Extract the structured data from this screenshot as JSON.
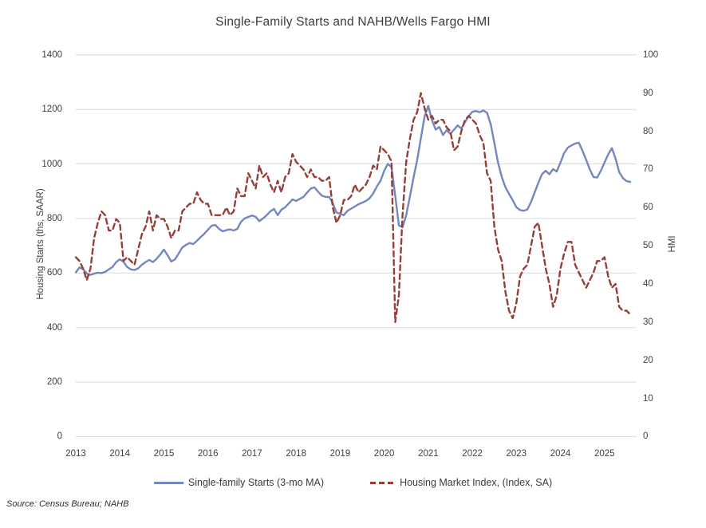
{
  "title": "Single-Family Starts and NAHB/Wells Fargo HMI",
  "source_note": "Source: Census Bureau; NAHB",
  "colors": {
    "starts_line": "#7587BF",
    "hmi_line": "#953E3A",
    "gridline": "#D9D9D9",
    "axis_text": "#404040"
  },
  "chart_data": {
    "type": "line",
    "title": "Single-Family Starts and NAHB/Wells Fargo HMI",
    "frequency": "monthly",
    "x_start": "2013-01",
    "x_end": "2025-08",
    "grid": "horizontal",
    "legend_position": "bottom",
    "x_tick_labels": [
      "2013",
      "2014",
      "2015",
      "2016",
      "2017",
      "2018",
      "2019",
      "2020",
      "2021",
      "2022",
      "2023",
      "2024",
      "2025"
    ],
    "left_axis": {
      "label": "Housing Starts (ths, SAAR)",
      "min": 0,
      "max": 1400,
      "ticks": [
        0,
        200,
        400,
        600,
        800,
        1000,
        1200,
        1400
      ]
    },
    "right_axis": {
      "label": "HMI",
      "min": 0,
      "max": 100,
      "ticks": [
        0,
        10,
        20,
        30,
        40,
        50,
        60,
        70,
        80,
        90,
        100
      ]
    },
    "series": [
      {
        "name": "Single-family Starts (3-mo MA)",
        "axis": "left",
        "style": "solid",
        "color": "#7587BF",
        "values": [
          602,
          620,
          614,
          598,
          593,
          598,
          601,
          600,
          604,
          613,
          622,
          640,
          650,
          641,
          622,
          613,
          611,
          617,
          630,
          640,
          648,
          640,
          652,
          668,
          686,
          665,
          642,
          650,
          671,
          694,
          703,
          710,
          706,
          718,
          732,
          744,
          759,
          773,
          776,
          762,
          753,
          757,
          760,
          756,
          762,
          788,
          800,
          806,
          811,
          806,
          790,
          800,
          812,
          826,
          835,
          812,
          832,
          841,
          855,
          870,
          864,
          872,
          879,
          895,
          910,
          914,
          898,
          884,
          879,
          879,
          856,
          822,
          817,
          812,
          828,
          836,
          844,
          852,
          858,
          864,
          874,
          892,
          917,
          938,
          975,
          1000,
          988,
          884,
          775,
          768,
          812,
          880,
          950,
          1015,
          1095,
          1175,
          1213,
          1160,
          1126,
          1136,
          1106,
          1124,
          1110,
          1126,
          1141,
          1130,
          1153,
          1176,
          1191,
          1194,
          1190,
          1196,
          1188,
          1146,
          1077,
          1005,
          953,
          915,
          890,
          867,
          841,
          831,
          828,
          833,
          861,
          896,
          931,
          963,
          975,
          962,
          981,
          972,
          1005,
          1040,
          1060,
          1068,
          1075,
          1078,
          1048,
          1015,
          980,
          952,
          950,
          975,
          1005,
          1035,
          1058,
          1020,
          970,
          948,
          937,
          934
        ]
      },
      {
        "name": "Housing Market Index, (Index, SA)",
        "axis": "right",
        "style": "dashed",
        "color": "#953E3A",
        "values": [
          47,
          46,
          44,
          41,
          44,
          52,
          56,
          59,
          58,
          54,
          54,
          57,
          56,
          46,
          47,
          46,
          45,
          49,
          53,
          55,
          59,
          54,
          58,
          57,
          57,
          55,
          52,
          54,
          54,
          59,
          60,
          61,
          61,
          64,
          62,
          61,
          61,
          58,
          58,
          58,
          58,
          60,
          58,
          59,
          65,
          63,
          63,
          69,
          67,
          65,
          71,
          68,
          69,
          66,
          64,
          67,
          64,
          68,
          69,
          74,
          72,
          71,
          70,
          68,
          70,
          68,
          68,
          67,
          67,
          68,
          60,
          56,
          58,
          62,
          62,
          63,
          66,
          64,
          65,
          66,
          68,
          71,
          70,
          76,
          75,
          74,
          72,
          30,
          37,
          58,
          72,
          78,
          83,
          85,
          90,
          86,
          83,
          84,
          82,
          83,
          83,
          81,
          80,
          75,
          76,
          80,
          83,
          84,
          83,
          82,
          79,
          77,
          69,
          67,
          55,
          49,
          46,
          38,
          33,
          31,
          35,
          42,
          44,
          45,
          50,
          55,
          56,
          50,
          44,
          40,
          34,
          37,
          44,
          48,
          51,
          51,
          45,
          43,
          41,
          39,
          41,
          43,
          46,
          46,
          47,
          42,
          39,
          40,
          34,
          33,
          33,
          32
        ]
      }
    ]
  }
}
